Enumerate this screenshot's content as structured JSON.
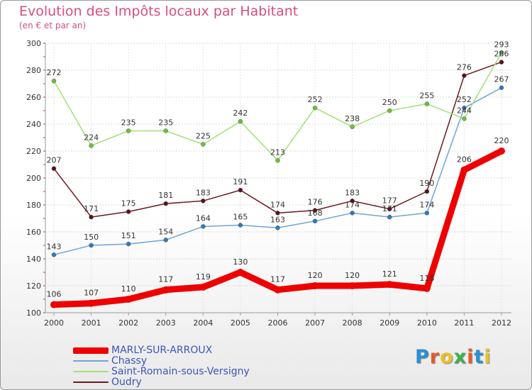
{
  "header": {
    "title": "Evolution des Impôts locaux par Habitant",
    "subtitle": "(en € et par an)"
  },
  "logo": {
    "text": "Proxiti",
    "letters": [
      "P",
      "r",
      "o",
      "x",
      "i",
      "t",
      "i"
    ],
    "colors": [
      "#2a8fd6",
      "#e8582a",
      "#e8c229",
      "#3db04b",
      "#e8582a",
      "#2a8fd6",
      "#e8c229"
    ]
  },
  "chart_data": {
    "type": "line",
    "title": "Evolution des Impôts locaux par Habitant",
    "subtitle": "(en € et par an)",
    "xlabel": "",
    "ylabel": "",
    "ylim": [
      100,
      300
    ],
    "yticks": [
      100,
      120,
      140,
      160,
      180,
      200,
      220,
      240,
      260,
      280,
      300
    ],
    "grid": true,
    "legend_position": "bottom-left",
    "categories": [
      "2000",
      "2001",
      "2002",
      "2003",
      "2004",
      "2005",
      "2006",
      "2007",
      "2008",
      "2009",
      "2010",
      "2011",
      "2012"
    ],
    "series": [
      {
        "name": "Oudry",
        "color": "#6b1a1f",
        "point_color": "#5a1216",
        "values": [
          207,
          171,
          175,
          181,
          183,
          191,
          174,
          176,
          183,
          177,
          190,
          276,
          286
        ],
        "bold": false
      },
      {
        "name": "Chassy",
        "color": "#6fa4d6",
        "point_color": "#2f7ac0",
        "values": [
          143,
          150,
          151,
          154,
          164,
          165,
          163,
          168,
          174,
          171,
          174,
          252,
          267
        ],
        "bold": false
      },
      {
        "name": "Saint-Romain-sous-Versigny",
        "color": "#a2e07a",
        "point_color": "#6ac238",
        "values": [
          272,
          224,
          235,
          235,
          225,
          242,
          213,
          252,
          238,
          250,
          255,
          244,
          293
        ],
        "bold": false
      },
      {
        "name": "MARLY-SUR-ARROUX",
        "color": "#ee0000",
        "point_color": "#ee0000",
        "values": [
          106,
          107,
          110,
          117,
          119,
          130,
          117,
          120,
          120,
          121,
          118,
          206,
          220
        ],
        "bold": true
      }
    ],
    "legend_order": [
      "MARLY-SUR-ARROUX",
      "Chassy",
      "Saint-Romain-sous-Versigny",
      "Oudry"
    ]
  }
}
